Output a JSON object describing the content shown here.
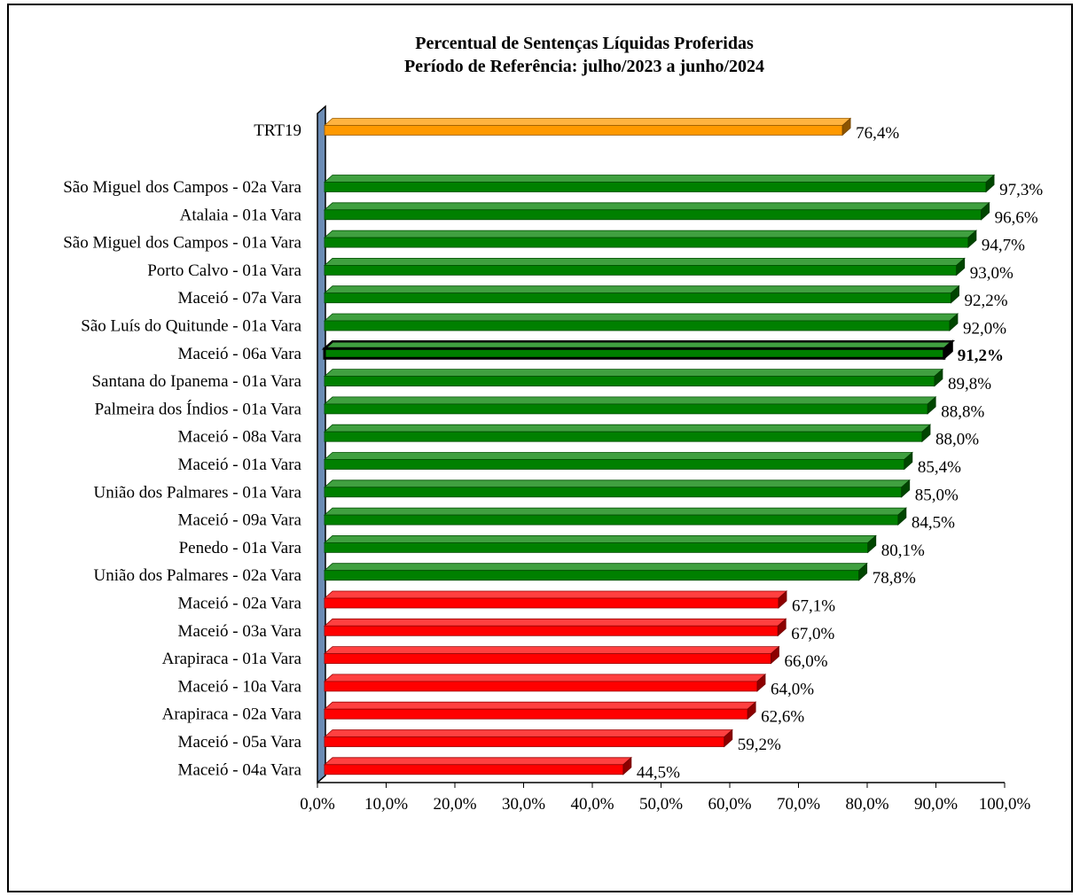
{
  "chart_data": {
    "type": "bar",
    "orientation": "horizontal",
    "title": "Percentual de Sentenças Líquidas Proferidas",
    "subtitle": "Período de Referência: julho/2023 a junho/2024",
    "xlim": [
      0,
      100
    ],
    "x_ticks": [
      "0,0%",
      "10,0%",
      "20,0%",
      "30,0%",
      "40,0%",
      "50,0%",
      "60,0%",
      "70,0%",
      "80,0%",
      "90,0%",
      "100,0%"
    ],
    "grid": false,
    "legend": "none",
    "colors": {
      "total": "#ff9900",
      "above": "#008000",
      "below": "#ff0000",
      "highlight": "#000000",
      "wall": "#6b8cb5"
    },
    "bars": [
      {
        "label": "TRT19",
        "value": 76.4,
        "value_label": "76,4%",
        "group": "total"
      },
      {
        "label": "São Miguel dos Campos  - 02a Vara",
        "value": 97.3,
        "value_label": "97,3%",
        "group": "above"
      },
      {
        "label": "Atalaia  - 01a Vara",
        "value": 96.6,
        "value_label": "96,6%",
        "group": "above"
      },
      {
        "label": "São Miguel dos Campos  - 01a Vara",
        "value": 94.7,
        "value_label": "94,7%",
        "group": "above"
      },
      {
        "label": "Porto Calvo  - 01a Vara",
        "value": 93.0,
        "value_label": "93,0%",
        "group": "above"
      },
      {
        "label": "Maceió  - 07a Vara",
        "value": 92.2,
        "value_label": "92,2%",
        "group": "above"
      },
      {
        "label": "São Luís do Quitunde  - 01a Vara",
        "value": 92.0,
        "value_label": "92,0%",
        "group": "above"
      },
      {
        "label": "Maceió  - 06a Vara",
        "value": 91.2,
        "value_label": "91,2%",
        "group": "highlight"
      },
      {
        "label": "Santana do Ipanema  - 01a Vara",
        "value": 89.8,
        "value_label": "89,8%",
        "group": "above"
      },
      {
        "label": "Palmeira dos Índios  - 01a Vara",
        "value": 88.8,
        "value_label": "88,8%",
        "group": "above"
      },
      {
        "label": "Maceió  - 08a Vara",
        "value": 88.0,
        "value_label": "88,0%",
        "group": "above"
      },
      {
        "label": "Maceió  - 01a Vara",
        "value": 85.4,
        "value_label": "85,4%",
        "group": "above"
      },
      {
        "label": "União dos Palmares  - 01a Vara",
        "value": 85.0,
        "value_label": "85,0%",
        "group": "above"
      },
      {
        "label": "Maceió  - 09a Vara",
        "value": 84.5,
        "value_label": "84,5%",
        "group": "above"
      },
      {
        "label": "Penedo  - 01a Vara",
        "value": 80.1,
        "value_label": "80,1%",
        "group": "above"
      },
      {
        "label": "União dos Palmares  - 02a Vara",
        "value": 78.8,
        "value_label": "78,8%",
        "group": "above"
      },
      {
        "label": "Maceió  - 02a Vara",
        "value": 67.1,
        "value_label": "67,1%",
        "group": "below"
      },
      {
        "label": "Maceió  - 03a Vara",
        "value": 67.0,
        "value_label": "67,0%",
        "group": "below"
      },
      {
        "label": "Arapiraca  - 01a Vara",
        "value": 66.0,
        "value_label": "66,0%",
        "group": "below"
      },
      {
        "label": "Maceió  - 10a Vara",
        "value": 64.0,
        "value_label": "64,0%",
        "group": "below"
      },
      {
        "label": "Arapiraca  - 02a Vara",
        "value": 62.6,
        "value_label": "62,6%",
        "group": "below"
      },
      {
        "label": "Maceió  - 05a Vara",
        "value": 59.2,
        "value_label": "59,2%",
        "group": "below"
      },
      {
        "label": "Maceió  - 04a Vara",
        "value": 44.5,
        "value_label": "44,5%",
        "group": "below"
      }
    ]
  }
}
